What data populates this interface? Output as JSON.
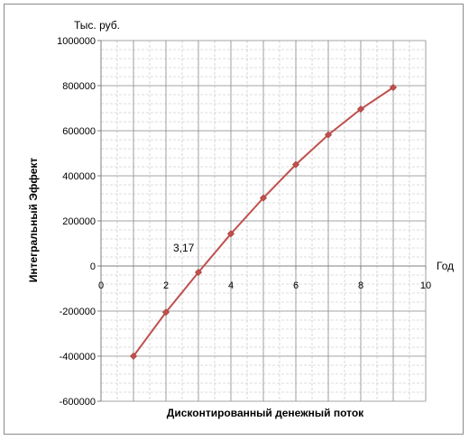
{
  "chart_data": {
    "type": "line",
    "title": "",
    "unit_label": "Тыс. руб.",
    "xlabel": "Дисконтированный денежный поток",
    "xaxis_name": "Год",
    "ylabel": "Интегральный Эффект",
    "xlim": [
      0,
      10
    ],
    "ylim": [
      -600000,
      1000000
    ],
    "x_ticks": [
      0,
      2,
      4,
      6,
      8,
      10
    ],
    "y_ticks": [
      -600000,
      -400000,
      -200000,
      0,
      200000,
      400000,
      600000,
      800000,
      1000000
    ],
    "grid": true,
    "legend": "none",
    "line_color": "#c0504d",
    "series": [
      {
        "name": "",
        "x": [
          1,
          2,
          3,
          4,
          5,
          6,
          7,
          8,
          9
        ],
        "y": [
          -400000,
          -205000,
          -28000,
          143000,
          302000,
          450000,
          582000,
          696000,
          792000
        ]
      }
    ],
    "annotation": {
      "text": "3,17",
      "x": 3.17,
      "y": 0
    }
  }
}
